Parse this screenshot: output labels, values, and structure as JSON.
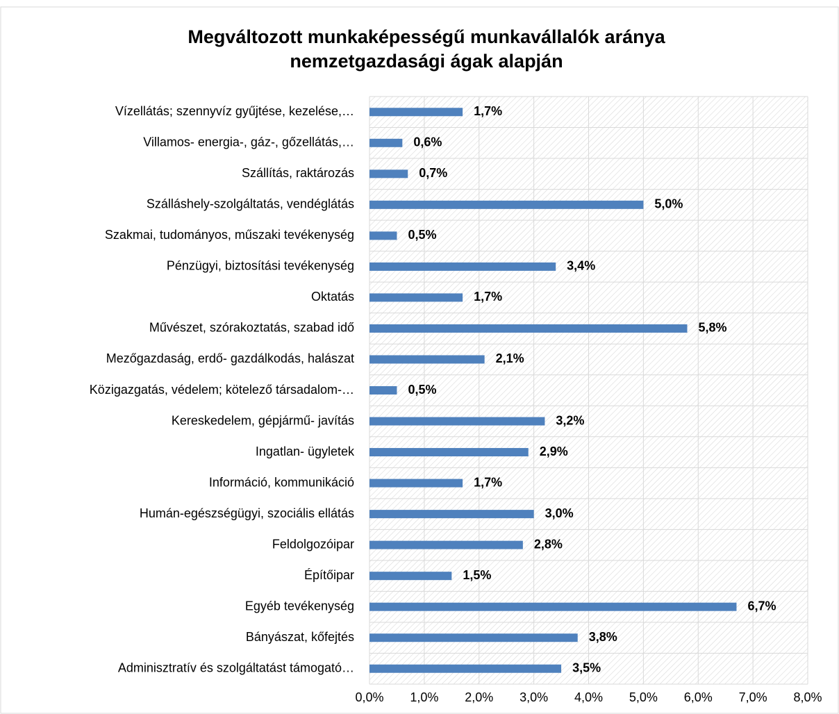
{
  "chart_data": {
    "type": "bar",
    "orientation": "horizontal",
    "title": [
      "Megváltozott munkaképességű munkavállalók aránya",
      "nemzetgazdasági ágak alapján"
    ],
    "categories": [
      "Vízellátás; szennyvíz gyűjtése, kezelése,…",
      "Villamos- energia-, gáz-, gőzellátás,…",
      "Szállítás, raktározás",
      "Szálláshely-szolgáltatás, vendéglátás",
      "Szakmai, tudományos, műszaki tevékenység",
      "Pénzügyi, biztosítási tevékenység",
      "Oktatás",
      "Művészet, szórakoztatás, szabad idő",
      "Mezőgazdaság, erdő- gazdálkodás, halászat",
      "Közigazgatás, védelem; kötelező társadalom-…",
      "Kereskedelem, gépjármű- javítás",
      "Ingatlan- ügyletek",
      "Információ, kommunikáció",
      "Humán-egészségügyi, szociális ellátás",
      "Feldolgozóipar",
      "Építőipar",
      "Egyéb tevékenység",
      "Bányászat, kőfejtés",
      "Adminisztratív és szolgáltatást támogató…"
    ],
    "values": [
      1.7,
      0.6,
      0.7,
      5.0,
      0.5,
      3.4,
      1.7,
      5.8,
      2.1,
      0.5,
      3.2,
      2.9,
      1.7,
      3.0,
      2.8,
      1.5,
      6.7,
      3.8,
      3.5
    ],
    "value_labels": [
      "1,7%",
      "0,6%",
      "0,7%",
      "5,0%",
      "0,5%",
      "3,4%",
      "1,7%",
      "5,8%",
      "2,1%",
      "0,5%",
      "3,2%",
      "2,9%",
      "1,7%",
      "3,0%",
      "2,8%",
      "1,5%",
      "6,7%",
      "3,8%",
      "3,5%"
    ],
    "color": "#4f81bd",
    "xlim": [
      0,
      8
    ],
    "xticks": [
      {
        "value": 0,
        "label": "0,0%"
      },
      {
        "value": 1,
        "label": "1,0%"
      },
      {
        "value": 2,
        "label": "2,0%"
      },
      {
        "value": 3,
        "label": "3,0%"
      },
      {
        "value": 4,
        "label": "4,0%"
      },
      {
        "value": 5,
        "label": "5,0%"
      },
      {
        "value": 6,
        "label": "6,0%"
      },
      {
        "value": 7,
        "label": "7,0%"
      },
      {
        "value": 8,
        "label": "8,0%"
      }
    ],
    "grid": true
  }
}
